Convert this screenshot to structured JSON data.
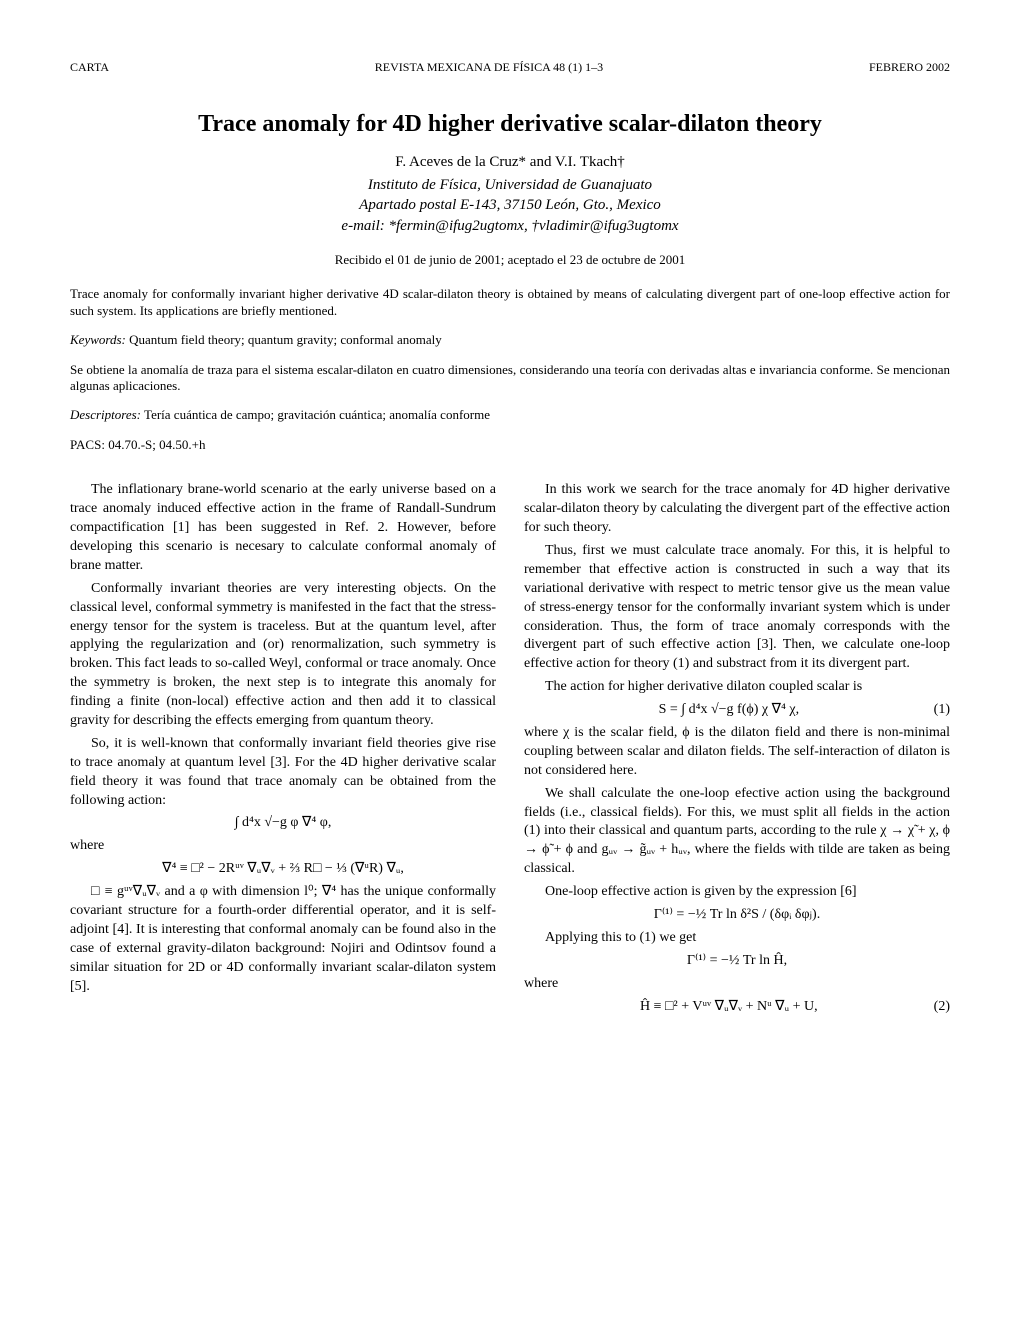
{
  "header": {
    "left": "CARTA",
    "center": "REVISTA MEXICANA DE FÍSICA 48 (1) 1–3",
    "right": "FEBRERO 2002"
  },
  "title": "Trace anomaly for 4D higher derivative scalar-dilaton theory",
  "authors": "F. Aceves de la Cruz* and V.I. Tkach†",
  "affiliation": {
    "line1": "Instituto de Física, Universidad de Guanajuato",
    "line2": "Apartado postal E-143, 37150 León, Gto., Mexico",
    "line3": "e-mail: *fermin@ifug2ugtomx, †vladimir@ifug3ugtomx"
  },
  "received": "Recibido el 01 de junio de 2001; aceptado el 23 de octubre de 2001",
  "abstract_en": "Trace anomaly for conformally invariant higher derivative 4D scalar-dilaton theory is obtained by means of calculating divergent part of one-loop effective action for such system. Its applications are briefly mentioned.",
  "keywords_label": "Keywords:",
  "keywords": " Quantum field theory; quantum gravity; conformal anomaly",
  "abstract_es": "Se obtiene la anomalía de traza para el sistema escalar-dilaton en cuatro dimensiones, considerando una teoría con derivadas altas e invariancia conforme. Se mencionan algunas aplicaciones.",
  "descriptores_label": "Descriptores:",
  "descriptores": " Tería cuántica de campo; gravitación cuántica; anomalía conforme",
  "pacs": "PACS: 04.70.-S; 04.50.+h",
  "body": {
    "p1": "The inflationary brane-world scenario at the early universe based on a trace anomaly induced effective action in the frame of Randall-Sundrum compactification [1] has been suggested in Ref. 2. However, before developing this scenario is necesary to calculate conformal anomaly of brane matter.",
    "p2": "Conformally invariant theories are very interesting objects. On the classical level, conformal symmetry is manifested in the fact that the stress-energy tensor for the system is traceless. But at the quantum level, after applying the regularization and (or) renormalization, such symmetry is broken. This fact leads to so-called Weyl, conformal or trace anomaly. Once the symmetry is broken, the next step is to integrate this anomaly for finding a finite (non-local) effective action and then add it to classical gravity for describing the effects emerging from quantum theory.",
    "p3": "So, it is well-known that conformally invariant field theories give rise to trace anomaly at quantum level [3]. For the 4D higher derivative scalar field theory it was found that trace anomaly can be obtained from the following action:",
    "eq_a": "∫ d⁴x √−g  φ ∇⁴ φ,",
    "where1": "where",
    "eq_b": "∇⁴ ≡ □² − 2Rᵘᵛ ∇ᵤ∇ᵥ + ⅔ R□ − ⅓ (∇ᵘR) ∇ᵤ,",
    "p4": "□ ≡ gᵘᵛ∇ᵤ∇ᵥ and a φ with dimension l⁰; ∇⁴ has the unique conformally covariant structure for a fourth-order differential operator, and it is self-adjoint [4]. It is interesting that conformal anomaly can be found also in the case of external gravity-dilaton background: Nojiri and Odintsov found a similar situation for 2D or 4D conformally invariant scalar-dilaton system [5].",
    "p5": "In this work we search for the trace anomaly for 4D higher derivative scalar-dilaton theory by calculating the divergent part of the effective action for such theory.",
    "p6": "Thus, first we must calculate trace anomaly. For this, it is helpful to remember that effective action is constructed in such a way that its variational derivative with respect to metric tensor give us the mean value of stress-energy tensor for the conformally invariant system which is under consideration. Thus, the form of trace anomaly corresponds with the divergent part of such effective action [3]. Then, we calculate one-loop effective action for theory (1) and substract from it its divergent part.",
    "p7": "The action for higher derivative dilaton coupled scalar is",
    "eq1": "S = ∫ d⁴x √−g  f(ϕ) χ ∇⁴ χ,",
    "eq1_num": "(1)",
    "p8": "where χ is the scalar field, ϕ is the dilaton field and there is non-minimal coupling between scalar and dilaton fields. The self-interaction of dilaton is not considered here.",
    "p9": "We shall calculate the one-loop efective action using the background fields (i.e., classical fields). For this, we must split all fields in the action (1) into their classical and quantum parts, according to the rule χ → χ̃ + χ, ϕ → ϕ̃ + ϕ and gᵤᵥ → g̃ᵤᵥ + hᵤᵥ, where the fields with tilde are taken as being classical.",
    "p10": "One-loop effective action is given by the expression [6]",
    "eq_c": "Γ⁽¹⁾ = −½ Tr ln  δ²S / (δφᵢ δφⱼ).",
    "p11": "Applying this to (1) we get",
    "eq_d": "Γ⁽¹⁾ = −½ Tr ln Ĥ,",
    "where2": "where",
    "eq2": "Ĥ ≡ □² + Vᵘᵛ ∇ᵤ∇ᵥ + Nᵘ ∇ᵤ + U,",
    "eq2_num": "(2)"
  }
}
